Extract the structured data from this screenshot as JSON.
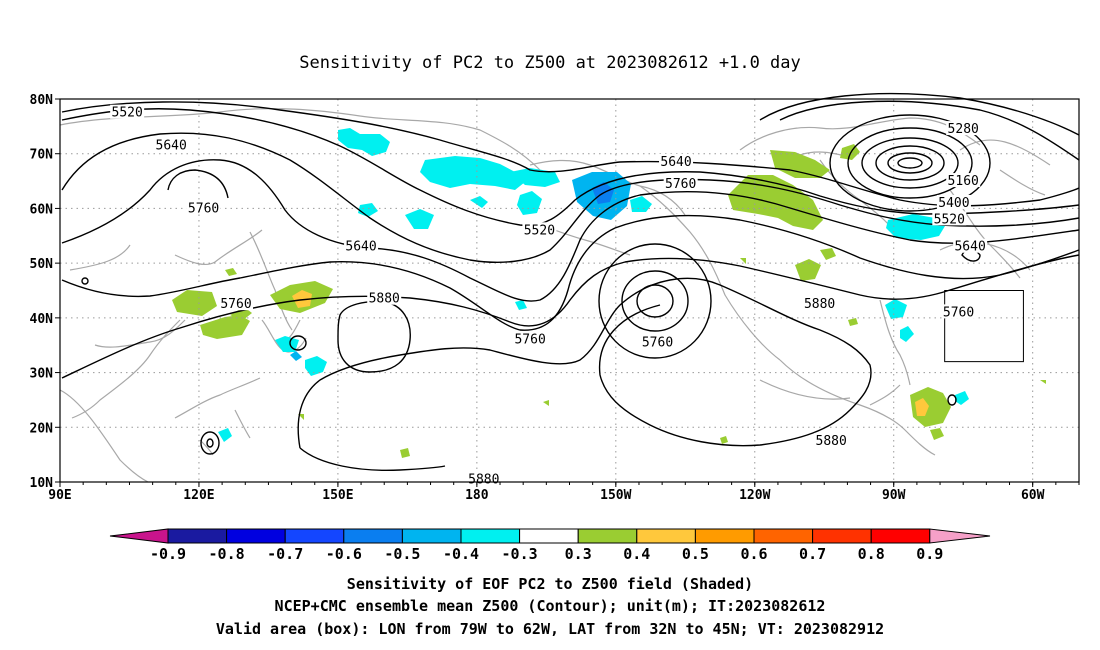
{
  "title": "Sensitivity of PC2 to Z500 at 2023082612 +1.0 day",
  "map": {
    "lon_range": [
      90,
      310
    ],
    "lat_range": [
      10,
      80
    ],
    "x_ticks": [
      {
        "lon": 90,
        "label": "90E"
      },
      {
        "lon": 120,
        "label": "120E"
      },
      {
        "lon": 150,
        "label": "150E"
      },
      {
        "lon": 180,
        "label": "180"
      },
      {
        "lon": 210,
        "label": "150W"
      },
      {
        "lon": 240,
        "label": "120W"
      },
      {
        "lon": 270,
        "label": "90W"
      },
      {
        "lon": 300,
        "label": "60W"
      }
    ],
    "y_ticks": [
      {
        "lat": 10,
        "label": "10N"
      },
      {
        "lat": 20,
        "label": "20N"
      },
      {
        "lat": 30,
        "label": "30N"
      },
      {
        "lat": 40,
        "label": "40N"
      },
      {
        "lat": 50,
        "label": "50N"
      },
      {
        "lat": 60,
        "label": "60N"
      },
      {
        "lat": 70,
        "label": "70N"
      },
      {
        "lat": 80,
        "label": "80N"
      }
    ],
    "valid_box": {
      "lon_w": 281,
      "lon_e": 298,
      "lat_s": 32,
      "lat_n": 45
    },
    "contour_labels": [
      {
        "text": "5520",
        "lon": 104.5,
        "lat": 77.5
      },
      {
        "text": "5640",
        "lon": 114,
        "lat": 71.5
      },
      {
        "text": "5760",
        "lon": 121,
        "lat": 60
      },
      {
        "text": "5640",
        "lon": 155,
        "lat": 53
      },
      {
        "text": "5760",
        "lon": 128,
        "lat": 42.5
      },
      {
        "text": "5880",
        "lon": 160,
        "lat": 43.5
      },
      {
        "text": "5520",
        "lon": 193.5,
        "lat": 56
      },
      {
        "text": "5640",
        "lon": 223,
        "lat": 68.5
      },
      {
        "text": "5760",
        "lon": 224,
        "lat": 64.5
      },
      {
        "text": "5760",
        "lon": 191.5,
        "lat": 36
      },
      {
        "text": "5760",
        "lon": 219,
        "lat": 35.5
      },
      {
        "text": "5880",
        "lon": 254,
        "lat": 42.5
      },
      {
        "text": "5880",
        "lon": 256.5,
        "lat": 17.5
      },
      {
        "text": "5880",
        "lon": 181.5,
        "lat": 10.5
      },
      {
        "text": "5280",
        "lon": 285,
        "lat": 74.5
      },
      {
        "text": "5160",
        "lon": 285,
        "lat": 65
      },
      {
        "text": "5400",
        "lon": 283,
        "lat": 61
      },
      {
        "text": "5520",
        "lon": 282,
        "lat": 58
      },
      {
        "text": "5640",
        "lon": 286.5,
        "lat": 53
      },
      {
        "text": "5760",
        "lon": 284,
        "lat": 41
      }
    ]
  },
  "colorbar": {
    "labels": [
      "-0.9",
      "-0.8",
      "-0.7",
      "-0.6",
      "-0.5",
      "-0.4",
      "-0.3",
      "0.3",
      "0.4",
      "0.5",
      "0.6",
      "0.7",
      "0.8",
      "0.9"
    ],
    "colors": [
      "#1a1aa0",
      "#0000e0",
      "#1446ff",
      "#0a7ef0",
      "#00b4f0",
      "#00f0f0",
      "#ffffff",
      "#9acd32",
      "#ffc83c",
      "#ff9b00",
      "#ff6400",
      "#ff3200",
      "#ff0000"
    ],
    "left_tip_color": "#c8148c",
    "right_tip_color": "#f5a0c8"
  },
  "footer": {
    "line1": "Sensitivity of EOF PC2 to Z500 field (Shaded)",
    "line2": "NCEP+CMC ensemble mean Z500 (Contour); unit(m); IT:2023082612",
    "line3": "Valid area (box): LON from 79W to 62W, LAT from 32N to 45N; VT: 2023082912"
  }
}
